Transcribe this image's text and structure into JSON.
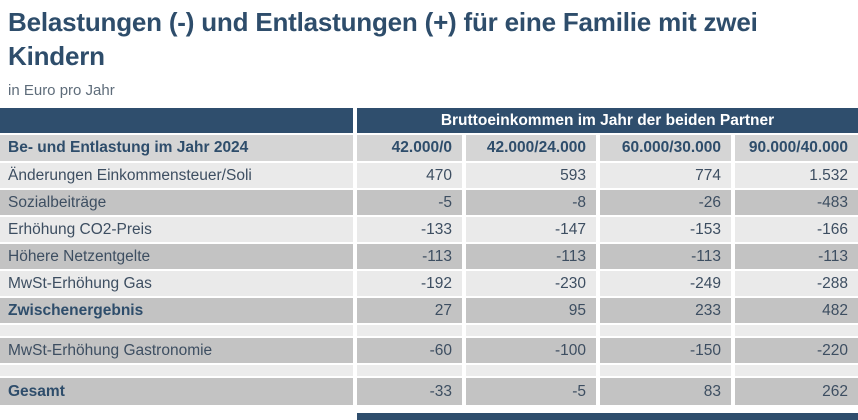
{
  "header": {
    "title": "Belastungen (-) und Entlastungen (+) für eine Familie mit zwei Kindern",
    "subtitle": "in Euro pro Jahr"
  },
  "table": {
    "group_header": "Bruttoeinkommen im Jahr der beiden Partner",
    "row_header_label": "Be- und Entlastung im Jahr 2024",
    "column_headers": [
      "42.000/0",
      "42.000/24.000",
      "60.000/30.000",
      "90.000/40.000"
    ],
    "rows": [
      {
        "type": "data",
        "shade": "light",
        "bold": false,
        "label": "Änderungen Einkommensteuer/Soli",
        "values": [
          "470",
          "593",
          "774",
          "1.532"
        ]
      },
      {
        "type": "data",
        "shade": "medium",
        "bold": false,
        "label": "Sozialbeiträge",
        "values": [
          "-5",
          "-8",
          "-26",
          "-483"
        ]
      },
      {
        "type": "data",
        "shade": "light",
        "bold": false,
        "label": "Erhöhung CO2-Preis",
        "values": [
          "-133",
          "-147",
          "-153",
          "-166"
        ]
      },
      {
        "type": "data",
        "shade": "medium",
        "bold": false,
        "label": "Höhere Netzentgelte",
        "values": [
          "-113",
          "-113",
          "-113",
          "-113"
        ]
      },
      {
        "type": "data",
        "shade": "light",
        "bold": false,
        "label": "MwSt-Erhöhung Gas",
        "values": [
          "-192",
          "-230",
          "-249",
          "-288"
        ]
      },
      {
        "type": "data",
        "shade": "medium",
        "bold": true,
        "label": "Zwischenergebnis",
        "values": [
          "27",
          "95",
          "233",
          "482"
        ]
      },
      {
        "type": "spacer"
      },
      {
        "type": "data",
        "shade": "medium",
        "bold": false,
        "label": "MwSt-Erhöhung Gastronomie",
        "values": [
          "-60",
          "-100",
          "-150",
          "-220"
        ]
      },
      {
        "type": "spacer"
      },
      {
        "type": "data",
        "shade": "medium",
        "bold": true,
        "label": "Gesamt",
        "values": [
          "-33",
          "-5",
          "83",
          "262"
        ]
      }
    ]
  },
  "chart_data": {
    "type": "table",
    "title": "Belastungen (-) und Entlastungen (+) für eine Familie mit zwei Kindern",
    "subtitle": "in Euro pro Jahr",
    "column_group_label": "Bruttoeinkommen im Jahr der beiden Partner",
    "row_header": "Be- und Entlastung im Jahr 2024",
    "columns": [
      "42.000/0",
      "42.000/24.000",
      "60.000/30.000",
      "90.000/40.000"
    ],
    "rows": [
      {
        "label": "Änderungen Einkommensteuer/Soli",
        "values": [
          470,
          593,
          774,
          1532
        ]
      },
      {
        "label": "Sozialbeiträge",
        "values": [
          -5,
          -8,
          -26,
          -483
        ]
      },
      {
        "label": "Erhöhung CO2-Preis",
        "values": [
          -133,
          -147,
          -153,
          -166
        ]
      },
      {
        "label": "Höhere Netzentgelte",
        "values": [
          -113,
          -113,
          -113,
          -113
        ]
      },
      {
        "label": "MwSt-Erhöhung Gas",
        "values": [
          -192,
          -230,
          -249,
          -288
        ]
      },
      {
        "label": "Zwischenergebnis",
        "values": [
          27,
          95,
          233,
          482
        ]
      },
      {
        "label": "MwSt-Erhöhung Gastronomie",
        "values": [
          -60,
          -100,
          -150,
          -220
        ]
      },
      {
        "label": "Gesamt",
        "values": [
          -33,
          -5,
          83,
          262
        ]
      }
    ]
  },
  "colors": {
    "accent_navy": "#2f4e6d",
    "title_text": "#2e4d6b",
    "body_text": "#3d4e61",
    "row_light": "#eaeaea",
    "row_medium": "#c3c3c3",
    "row_header_bg": "#d5d5d5",
    "spacer_bg": "#ececec"
  }
}
